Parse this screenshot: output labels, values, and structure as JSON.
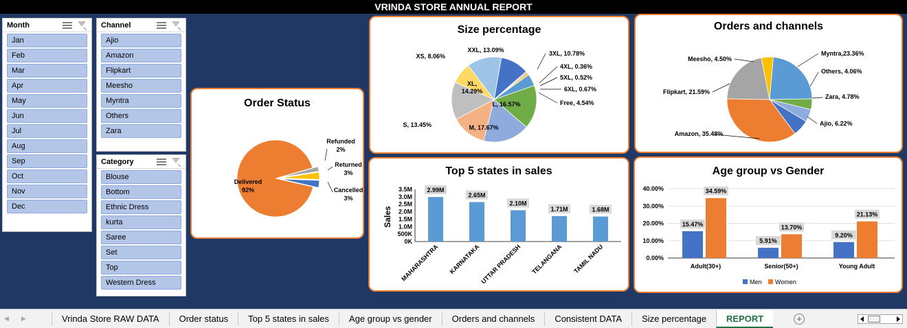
{
  "report_title": "VRINDA STORE ANNUAL REPORT",
  "slicers": {
    "month": {
      "title": "Month",
      "items": [
        "Jan",
        "Feb",
        "Mar",
        "Apr",
        "May",
        "Jun",
        "Jul",
        "Aug",
        "Sep",
        "Oct",
        "Nov",
        "Dec"
      ]
    },
    "channel": {
      "title": "Channel",
      "items": [
        "Ajio",
        "Amazon",
        "Flipkart",
        "Meesho",
        "Myntra",
        "Others",
        "Zara"
      ]
    },
    "category": {
      "title": "Category",
      "items": [
        "Blouse",
        "Bottom",
        "Ethnic Dress",
        "kurta",
        "Saree",
        "Set",
        "Top",
        "Western Dress"
      ]
    }
  },
  "tabs": [
    "Vrinda Store RAW DATA",
    "Order status",
    "Top 5 states in sales",
    "Age group vs gender",
    "Orders and channels",
    "Consistent DATA",
    "Size percentage",
    "REPORT"
  ],
  "active_tab": "REPORT",
  "tab_add_symbol": "+",
  "chart_data": [
    {
      "id": "order_status",
      "type": "pie",
      "title": "Order Status",
      "slices": [
        {
          "name": "Delivered",
          "value": 92,
          "label": "92%",
          "color": "#ed7d31"
        },
        {
          "name": "Refunded",
          "value": 2,
          "label": "2%",
          "color": "#a5a5a5"
        },
        {
          "name": "Returned",
          "value": 3,
          "label": "3%",
          "color": "#ffc000"
        },
        {
          "name": "Cancelled",
          "value": 3,
          "label": "3%",
          "color": "#4472c4"
        }
      ]
    },
    {
      "id": "size_percentage",
      "type": "pie",
      "title": "Size percentage",
      "slices": [
        {
          "name": "3XL",
          "value": 10.78,
          "label": "3XL, 10.78%",
          "color": "#4472c4"
        },
        {
          "name": "4XL",
          "value": 0.36,
          "label": "4XL, 0.36%",
          "color": "#ed7d31"
        },
        {
          "name": "5XL",
          "value": 0.52,
          "label": "5XL, 0.52%",
          "color": "#a5a5a5"
        },
        {
          "name": "6XL",
          "value": 0.67,
          "label": "6XL, 0.67%",
          "color": "#ffc000"
        },
        {
          "name": "Free",
          "value": 4.54,
          "label": "Free, 4.54%",
          "color": "#5b9bd5"
        },
        {
          "name": "L",
          "value": 16.57,
          "label": "L, 16.57%",
          "color": "#70ad47"
        },
        {
          "name": "M",
          "value": 17.67,
          "label": "M, 17.67%",
          "color": "#8faadc"
        },
        {
          "name": "S",
          "value": 13.45,
          "label": "S, 13.45%",
          "color": "#f4b183"
        },
        {
          "name": "XL",
          "value": 14.29,
          "label": "XL, 14.29%",
          "color": "#bfbfbf"
        },
        {
          "name": "XS",
          "value": 8.06,
          "label": "XS, 8.06%",
          "color": "#ffd966"
        },
        {
          "name": "XXL",
          "value": 13.09,
          "label": "XXL, 13.09%",
          "color": "#9dc3e6"
        }
      ]
    },
    {
      "id": "orders_channels",
      "type": "pie",
      "title": "Orders and channels",
      "slices": [
        {
          "name": "Myntra",
          "value": 23.36,
          "label": "Myntra,23.36%",
          "color": "#5b9bd5"
        },
        {
          "name": "Others",
          "value": 4.06,
          "label": "Others, 4.06%",
          "color": "#70ad47"
        },
        {
          "name": "Zara",
          "value": 4.78,
          "label": "Zara, 4.78%",
          "color": "#8faadc"
        },
        {
          "name": "Ajio",
          "value": 6.22,
          "label": "Ajio, 6.22%",
          "color": "#4472c4"
        },
        {
          "name": "Amazon",
          "value": 35.48,
          "label": "Amazon, 35.48%",
          "color": "#ed7d31"
        },
        {
          "name": "Flipkart",
          "value": 21.59,
          "label": "Flipkart, 21.59%",
          "color": "#a5a5a5"
        },
        {
          "name": "Meesho",
          "value": 4.5,
          "label": "Meesho, 4.50%",
          "color": "#ffc000"
        }
      ]
    },
    {
      "id": "top5_states",
      "type": "bar",
      "title": "Top 5 states in sales",
      "ylabel": "Sales",
      "ylim": [
        0,
        3.5
      ],
      "yticks": [
        "0K",
        "500K",
        "1.0M",
        "1.5M",
        "2.0M",
        "2.5M",
        "3.0M",
        "3.5M"
      ],
      "categories": [
        "MAHARASHTRA",
        "KARNATAKA",
        "UTTAR PRADESH",
        "TELANGANA",
        "TAMIL NADU"
      ],
      "values": [
        2.99,
        2.65,
        2.1,
        1.71,
        1.68
      ],
      "data_labels": [
        "2.99M",
        "2.65M",
        "2.10M",
        "1.71M",
        "1.68M"
      ],
      "color": "#5b9bd5"
    },
    {
      "id": "age_gender",
      "type": "bar",
      "title": "Age group vs Gender",
      "ylim": [
        0,
        40
      ],
      "yticks": [
        "0.00%",
        "10.00%",
        "20.00%",
        "30.00%",
        "40.00%"
      ],
      "grid": true,
      "legend": "bottom",
      "categories": [
        "Adult(30+)",
        "Senior(50+)",
        "Young Adult"
      ],
      "series": [
        {
          "name": "Men",
          "values": [
            15.47,
            5.91,
            9.2
          ],
          "labels": [
            "15.47%",
            "5.91%",
            "9.20%"
          ],
          "color": "#4472c4"
        },
        {
          "name": "Women",
          "values": [
            34.59,
            13.7,
            21.13
          ],
          "labels": [
            "34.59%",
            "13.70%",
            "21.13%"
          ],
          "color": "#ed7d31"
        }
      ]
    }
  ]
}
